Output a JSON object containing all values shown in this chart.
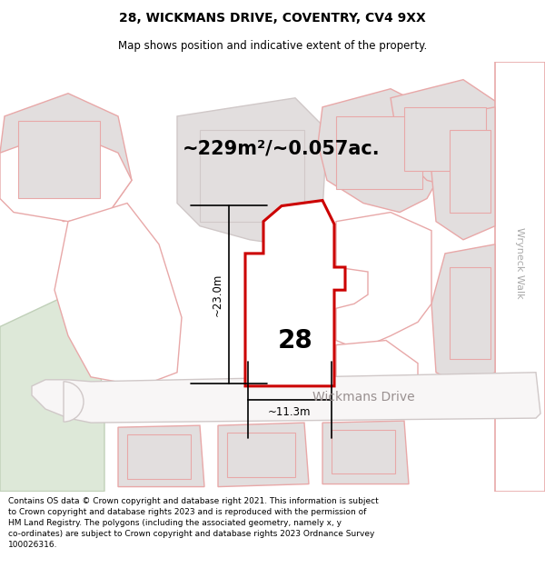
{
  "title_line1": "28, WICKMANS DRIVE, COVENTRY, CV4 9XX",
  "title_line2": "Map shows position and indicative extent of the property.",
  "area_text": "~229m²/~0.057ac.",
  "number_label": "28",
  "dim_vertical": "~23.0m",
  "dim_horizontal": "~11.3m",
  "street_label": "Wickmans Drive",
  "right_label": "Wryneck Walk",
  "footer_text": "Contains OS data © Crown copyright and database right 2021. This information is subject\nto Crown copyright and database rights 2023 and is reproduced with the permission of\nHM Land Registry. The polygons (including the associated geometry, namely x, y\nco-ordinates) are subject to Crown copyright and database rights 2023 Ordnance Survey\n100026316.",
  "map_bg": "#f5f0f0",
  "red_color": "#cc0000",
  "pink_color": "#e8a8a8",
  "light_gray": "#e2dede",
  "medium_gray": "#d0c8c8",
  "road_color": "#f8f6f6",
  "white": "#ffffff",
  "green_area": "#dde8d8",
  "green_border": "#c0d0b8",
  "title_fontsize": 10,
  "subtitle_fontsize": 8.5,
  "area_fontsize": 15,
  "number_fontsize": 20,
  "dim_fontsize": 8.5,
  "street_fontsize": 10,
  "walk_fontsize": 8,
  "footer_fontsize": 6.5
}
